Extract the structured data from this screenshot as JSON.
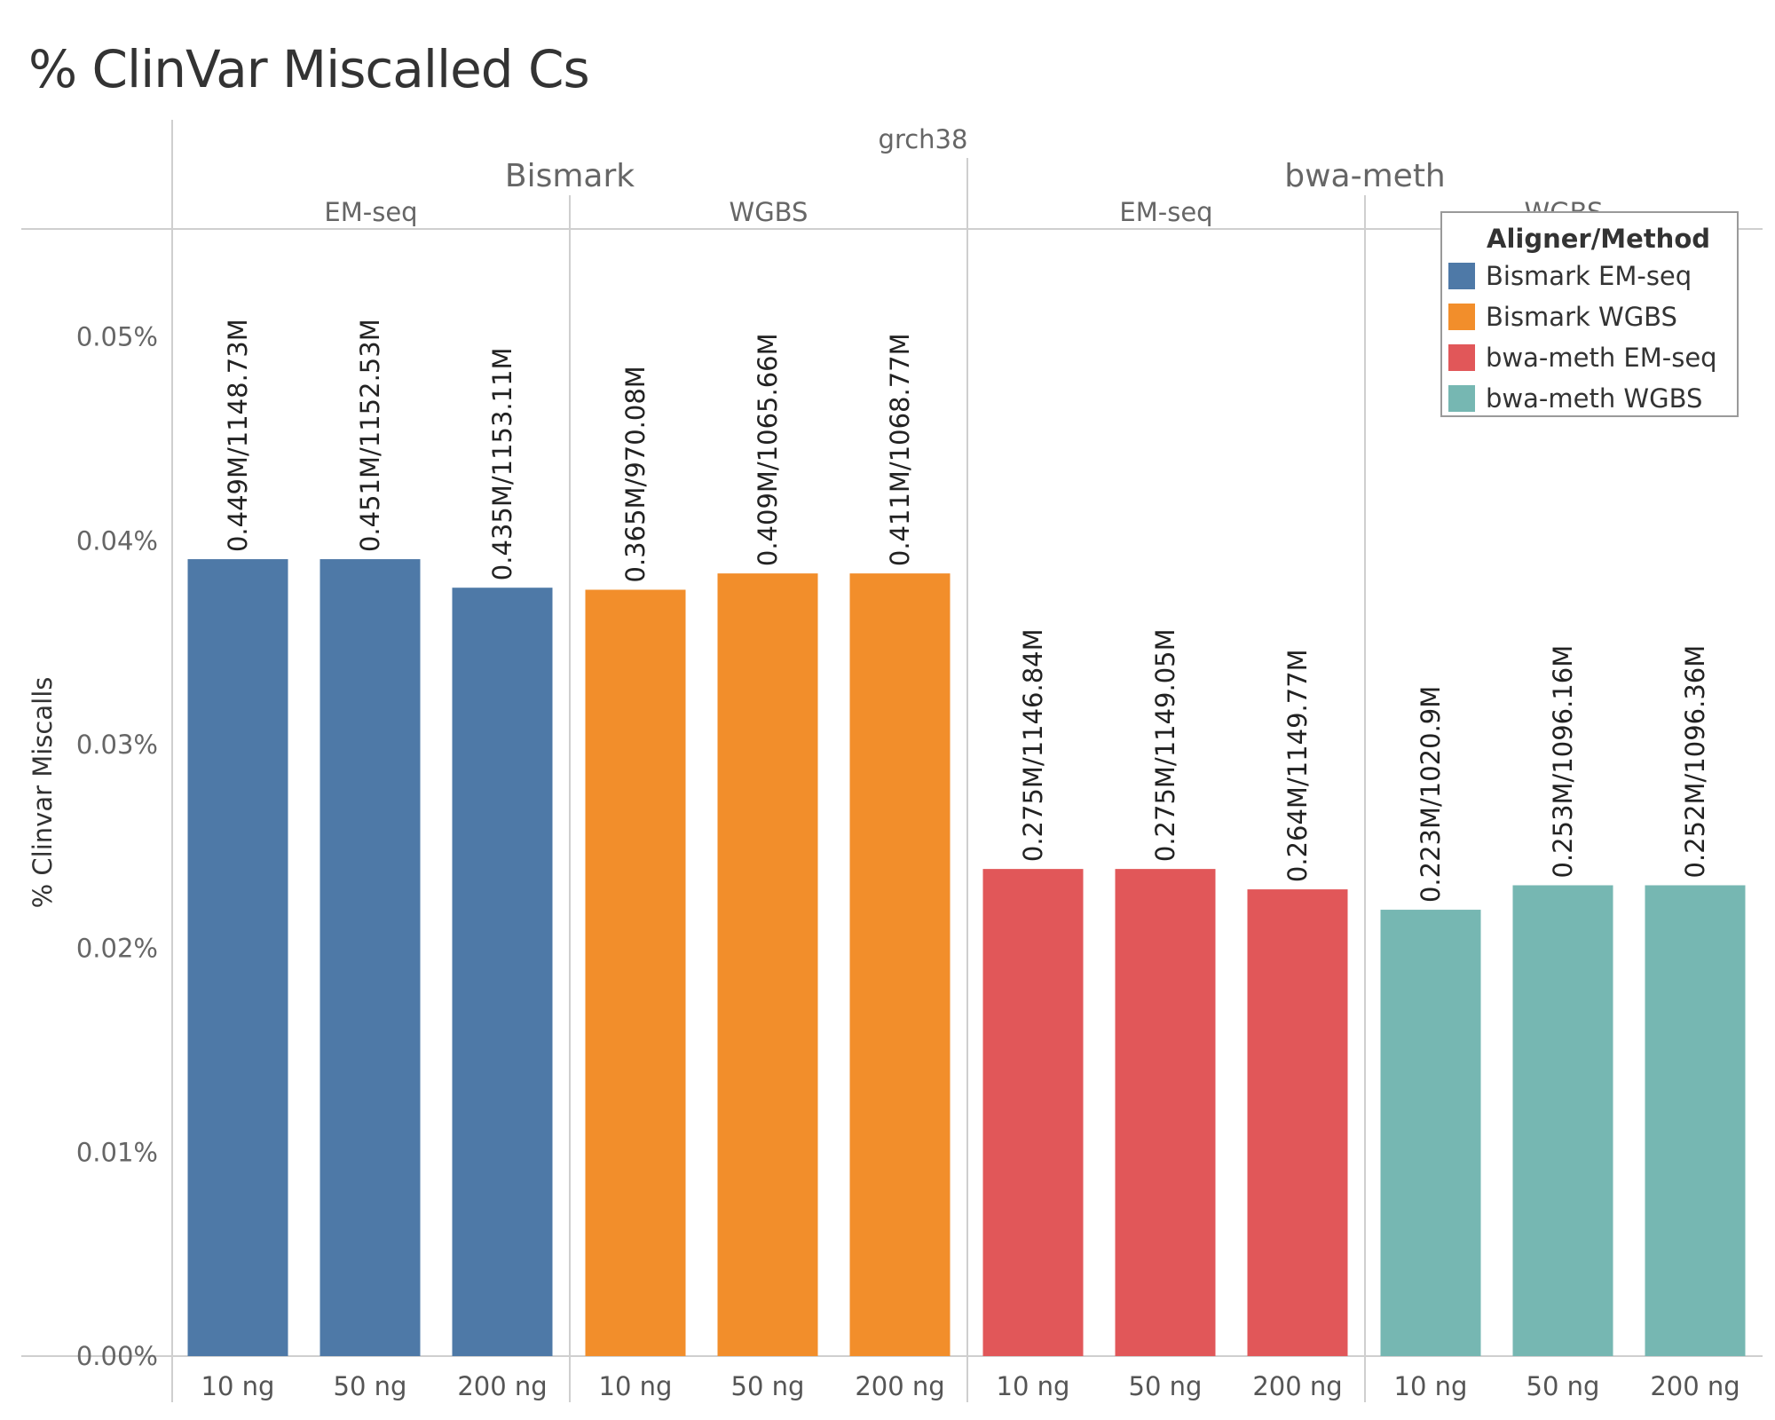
{
  "chart_data": {
    "type": "bar",
    "title": "% ClinVar Miscalled Cs",
    "top_header": "grch38",
    "ylabel": "% Clinvar Miscalls",
    "ylim": [
      0,
      0.0553
    ],
    "y_ticks": [
      "0.00%",
      "0.01%",
      "0.02%",
      "0.03%",
      "0.04%",
      "0.05%"
    ],
    "y_tick_values": [
      0,
      0.01,
      0.02,
      0.03,
      0.04,
      0.05
    ],
    "aligners": [
      {
        "name": "Bismark",
        "span": [
          0,
          1
        ]
      },
      {
        "name": "bwa-meth",
        "span": [
          2,
          3
        ]
      }
    ],
    "panels": [
      {
        "method": "EM-seq",
        "series": "Bismark EM-seq",
        "color": "#4e79a7",
        "categories": [
          "10 ng",
          "50 ng",
          "200 ng"
        ],
        "values": [
          0.0391,
          0.0391,
          0.0377
        ],
        "labels": [
          "0.449M/1148.73M",
          "0.451M/1152.53M",
          "0.435M/1153.11M"
        ]
      },
      {
        "method": "WGBS",
        "series": "Bismark WGBS",
        "color": "#f28e2b",
        "categories": [
          "10 ng",
          "50 ng",
          "200 ng"
        ],
        "values": [
          0.0376,
          0.0384,
          0.0384
        ],
        "labels": [
          "0.365M/970.08M",
          "0.409M/1065.66M",
          "0.411M/1068.77M"
        ]
      },
      {
        "method": "EM-seq",
        "series": "bwa-meth EM-seq",
        "color": "#e15759",
        "categories": [
          "10 ng",
          "50 ng",
          "200 ng"
        ],
        "values": [
          0.0239,
          0.0239,
          0.0229
        ],
        "labels": [
          "0.275M/1146.84M",
          "0.275M/1149.05M",
          "0.264M/1149.77M"
        ]
      },
      {
        "method": "WGBS",
        "series": "bwa-meth WGBS",
        "color": "#76b7b2",
        "categories": [
          "10 ng",
          "50 ng",
          "200 ng"
        ],
        "values": [
          0.0219,
          0.0231,
          0.0231
        ],
        "labels": [
          "0.223M/1020.9M",
          "0.253M/1096.16M",
          "0.252M/1096.36M"
        ]
      }
    ],
    "legend": {
      "title": "Aligner/Method",
      "position": "top-right",
      "items": [
        {
          "label": "Bismark EM-seq",
          "color": "#4e79a7"
        },
        {
          "label": "Bismark WGBS",
          "color": "#f28e2b"
        },
        {
          "label": "bwa-meth EM-seq",
          "color": "#e15759"
        },
        {
          "label": "bwa-meth WGBS",
          "color": "#76b7b2"
        }
      ]
    },
    "grid": false
  }
}
